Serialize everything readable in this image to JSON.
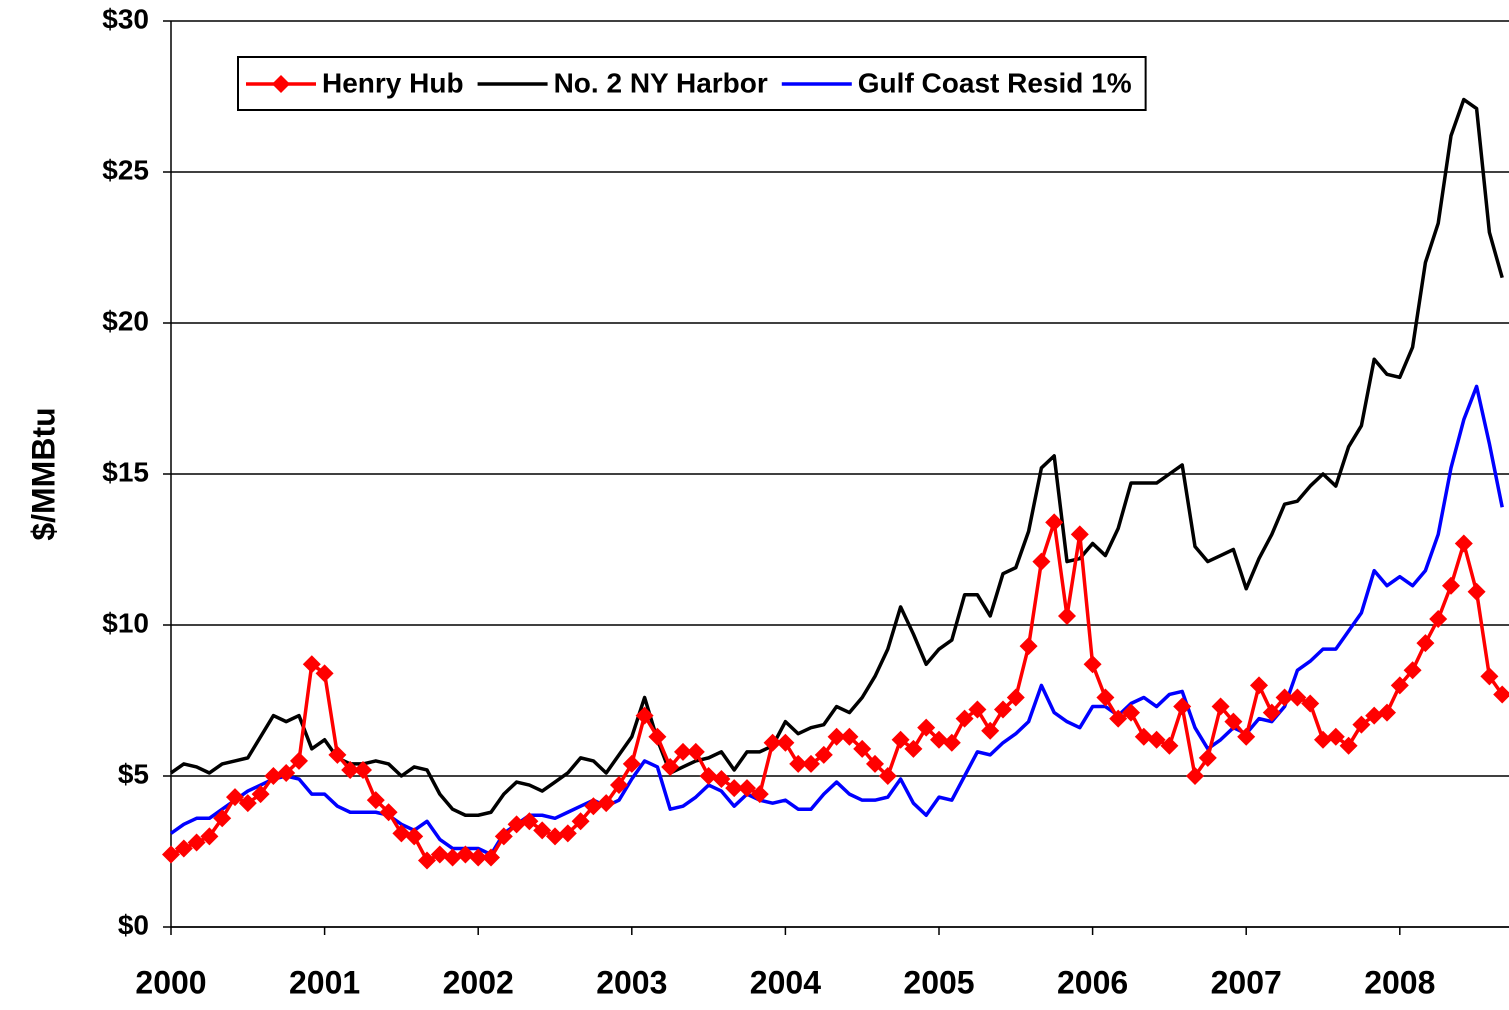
{
  "chart_data": {
    "type": "line",
    "y_label": "$/MMBtu",
    "categories": [
      "2000",
      null,
      null,
      null,
      null,
      null,
      null,
      null,
      null,
      null,
      null,
      null,
      "2001",
      null,
      null,
      null,
      null,
      null,
      null,
      null,
      null,
      null,
      null,
      null,
      "2002",
      null,
      null,
      null,
      null,
      null,
      null,
      null,
      null,
      null,
      null,
      null,
      "2003",
      null,
      null,
      null,
      null,
      null,
      null,
      null,
      null,
      null,
      null,
      null,
      "2004",
      null,
      null,
      null,
      null,
      null,
      null,
      null,
      null,
      null,
      null,
      null,
      "2005",
      null,
      null,
      null,
      null,
      null,
      null,
      null,
      null,
      null,
      null,
      null,
      "2006",
      null,
      null,
      null,
      null,
      null,
      null,
      null,
      null,
      null,
      null,
      null,
      "2007",
      null,
      null,
      null,
      null,
      null,
      null,
      null,
      null,
      null,
      null,
      null,
      "2008",
      null,
      null,
      null,
      null,
      null,
      null,
      null,
      null
    ],
    "series": [
      {
        "name": "Henry Hub",
        "color": "#ff0000",
        "marker": "diamond",
        "values": [
          2.4,
          2.6,
          2.8,
          3.0,
          3.6,
          4.3,
          4.1,
          4.4,
          5.0,
          5.1,
          5.5,
          8.7,
          8.4,
          5.7,
          5.2,
          5.2,
          4.2,
          3.8,
          3.1,
          3.0,
          2.2,
          2.4,
          2.3,
          2.4,
          2.3,
          2.3,
          3.0,
          3.4,
          3.5,
          3.2,
          3.0,
          3.1,
          3.5,
          4.0,
          4.1,
          4.7,
          5.4,
          7.0,
          6.3,
          5.3,
          5.8,
          5.8,
          5.0,
          4.9,
          4.6,
          4.6,
          4.4,
          6.1,
          6.1,
          5.4,
          5.4,
          5.7,
          6.3,
          6.3,
          5.9,
          5.4,
          5.0,
          6.2,
          5.9,
          6.6,
          6.2,
          6.1,
          6.9,
          7.2,
          6.5,
          7.2,
          7.6,
          9.3,
          12.1,
          13.4,
          10.3,
          13.0,
          8.7,
          7.6,
          6.9,
          7.1,
          6.3,
          6.2,
          6.0,
          7.3,
          5.0,
          5.6,
          7.3,
          6.8,
          6.3,
          8.0,
          7.1,
          7.6,
          7.6,
          7.4,
          6.2,
          6.3,
          6.0,
          6.7,
          7.0,
          7.1,
          8.0,
          8.5,
          9.4,
          10.2,
          11.3,
          12.7,
          11.1,
          8.3,
          7.7
        ]
      },
      {
        "name": "No. 2 NY Harbor",
        "color": "#000000",
        "values": [
          5.1,
          5.4,
          5.3,
          5.1,
          5.4,
          5.5,
          5.6,
          6.3,
          7.0,
          6.8,
          7.0,
          5.9,
          6.2,
          5.6,
          5.4,
          5.4,
          5.5,
          5.4,
          5.0,
          5.3,
          5.2,
          4.4,
          3.9,
          3.7,
          3.7,
          3.8,
          4.4,
          4.8,
          4.7,
          4.5,
          4.8,
          5.1,
          5.6,
          5.5,
          5.1,
          5.7,
          6.3,
          7.6,
          6.2,
          5.1,
          5.3,
          5.5,
          5.6,
          5.8,
          5.2,
          5.8,
          5.8,
          6.0,
          6.8,
          6.4,
          6.6,
          6.7,
          7.3,
          7.1,
          7.6,
          8.3,
          9.2,
          10.6,
          9.7,
          8.7,
          9.2,
          9.5,
          11.0,
          11.0,
          10.3,
          11.7,
          11.9,
          13.1,
          15.2,
          15.6,
          12.1,
          12.2,
          12.7,
          12.3,
          13.2,
          14.7,
          14.7,
          14.7,
          15.0,
          15.3,
          12.6,
          12.1,
          12.3,
          12.5,
          11.2,
          12.2,
          13.0,
          14.0,
          14.1,
          14.6,
          15.0,
          14.6,
          15.9,
          16.6,
          18.8,
          18.3,
          18.2,
          19.2,
          22.0,
          23.3,
          26.2,
          27.4,
          27.1,
          23.0,
          21.5
        ]
      },
      {
        "name": "Gulf Coast Resid 1%",
        "color": "#0000ff",
        "values": [
          3.1,
          3.4,
          3.6,
          3.6,
          3.9,
          4.2,
          4.5,
          4.7,
          4.9,
          5.0,
          4.9,
          4.4,
          4.4,
          4.0,
          3.8,
          3.8,
          3.8,
          3.7,
          3.4,
          3.2,
          3.5,
          2.9,
          2.6,
          2.6,
          2.6,
          2.4,
          3.1,
          3.4,
          3.7,
          3.7,
          3.6,
          3.8,
          4.0,
          4.2,
          4.0,
          4.2,
          4.9,
          5.5,
          5.3,
          3.9,
          4.0,
          4.3,
          4.7,
          4.5,
          4.0,
          4.4,
          4.2,
          4.1,
          4.2,
          3.9,
          3.9,
          4.4,
          4.8,
          4.4,
          4.2,
          4.2,
          4.3,
          4.9,
          4.1,
          3.7,
          4.3,
          4.2,
          5.0,
          5.8,
          5.7,
          6.1,
          6.4,
          6.8,
          8.0,
          7.1,
          6.8,
          6.6,
          7.3,
          7.3,
          7.0,
          7.4,
          7.6,
          7.3,
          7.7,
          7.8,
          6.6,
          5.9,
          6.2,
          6.6,
          6.4,
          6.9,
          6.8,
          7.3,
          8.5,
          8.8,
          9.2,
          9.2,
          9.8,
          10.4,
          11.8,
          11.3,
          11.6,
          11.3,
          11.8,
          13.0,
          15.2,
          16.8,
          17.9,
          16.0,
          13.9
        ]
      }
    ],
    "ylim": [
      0,
      30
    ],
    "yticks": [
      {
        "value": 0,
        "label": "$0"
      },
      {
        "value": 5,
        "label": "$5"
      },
      {
        "value": 10,
        "label": "$10"
      },
      {
        "value": 15,
        "label": "$15"
      },
      {
        "value": 20,
        "label": "$20"
      },
      {
        "value": 25,
        "label": "$25"
      },
      {
        "value": 30,
        "label": "$30"
      }
    ],
    "grid": true,
    "legend": "top-left"
  }
}
